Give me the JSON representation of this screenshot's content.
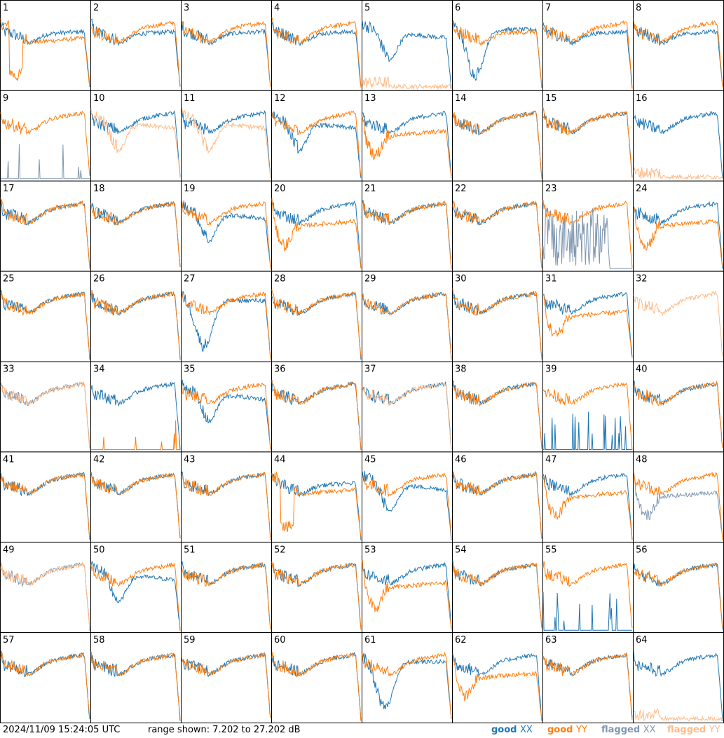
{
  "footer": {
    "timestamp": "2024/11/09 15:24:05 UTC",
    "range_text": "range shown: 7.202 to 27.202 dB"
  },
  "legend": {
    "good_xx": {
      "word": "good",
      "pol": "XX",
      "color": "#1f77b4"
    },
    "good_yy": {
      "word": "good",
      "pol": "YY",
      "color": "#ff7f0e"
    },
    "flagged_xx": {
      "word": "flagged",
      "pol": "XX",
      "color": "#7f97b0"
    },
    "flagged_yy": {
      "word": "flagged",
      "pol": "YY",
      "color": "#ffbb88"
    }
  },
  "chart_data": {
    "type": "line",
    "layout": "8x8 small multiples",
    "ylim": [
      7.202,
      27.202
    ],
    "yunit": "dB",
    "panels": [
      {
        "label": "1",
        "x": "good",
        "y": "good",
        "xs": "mid",
        "ys": "drop"
      },
      {
        "label": "2",
        "x": "good",
        "y": "good",
        "xs": "mid",
        "ys": "std"
      },
      {
        "label": "3",
        "x": "good",
        "y": "good",
        "xs": "mid",
        "ys": "std"
      },
      {
        "label": "4",
        "x": "good",
        "y": "good",
        "xs": "mid",
        "ys": "std"
      },
      {
        "label": "5",
        "x": "good",
        "y": "flagged",
        "xs": "dip",
        "ys": "flat"
      },
      {
        "label": "6",
        "x": "good",
        "y": "good",
        "xs": "deep",
        "ys": "mid"
      },
      {
        "label": "7",
        "x": "good",
        "y": "good",
        "xs": "mid",
        "ys": "std"
      },
      {
        "label": "8",
        "x": "good",
        "y": "good",
        "xs": "mid",
        "ys": "std"
      },
      {
        "label": "9",
        "x": "flagged",
        "y": "good",
        "xs": "spikes",
        "ys": "std"
      },
      {
        "label": "10",
        "x": "good",
        "y": "flagged",
        "xs": "std",
        "ys": "dip"
      },
      {
        "label": "11",
        "x": "good",
        "y": "flagged",
        "xs": "std",
        "ys": "dip"
      },
      {
        "label": "12",
        "x": "good",
        "y": "good",
        "xs": "dip",
        "ys": "std"
      },
      {
        "label": "13",
        "x": "good",
        "y": "good",
        "xs": "std",
        "ys": "low"
      },
      {
        "label": "14",
        "x": "good",
        "y": "good",
        "xs": "std",
        "ys": "std"
      },
      {
        "label": "15",
        "x": "good",
        "y": "good",
        "xs": "std",
        "ys": "std"
      },
      {
        "label": "16",
        "x": "good",
        "y": "flagged",
        "xs": "std",
        "ys": "flat"
      },
      {
        "label": "17",
        "x": "good",
        "y": "good",
        "xs": "std",
        "ys": "std"
      },
      {
        "label": "18",
        "x": "good",
        "y": "good",
        "xs": "std",
        "ys": "std"
      },
      {
        "label": "19",
        "x": "good",
        "y": "good",
        "xs": "dip",
        "ys": "std"
      },
      {
        "label": "20",
        "x": "good",
        "y": "good",
        "xs": "std",
        "ys": "low"
      },
      {
        "label": "21",
        "x": "good",
        "y": "good",
        "xs": "std",
        "ys": "std"
      },
      {
        "label": "22",
        "x": "good",
        "y": "good",
        "xs": "std",
        "ys": "std"
      },
      {
        "label": "23",
        "x": "flagged",
        "y": "good",
        "xs": "noise",
        "ys": "std"
      },
      {
        "label": "24",
        "x": "good",
        "y": "good",
        "xs": "std",
        "ys": "low"
      },
      {
        "label": "25",
        "x": "good",
        "y": "good",
        "xs": "std",
        "ys": "std"
      },
      {
        "label": "26",
        "x": "good",
        "y": "good",
        "xs": "std",
        "ys": "std"
      },
      {
        "label": "27",
        "x": "good",
        "y": "good",
        "xs": "deep",
        "ys": "std"
      },
      {
        "label": "28",
        "x": "good",
        "y": "good",
        "xs": "std",
        "ys": "std"
      },
      {
        "label": "29",
        "x": "good",
        "y": "good",
        "xs": "std",
        "ys": "std"
      },
      {
        "label": "30",
        "x": "good",
        "y": "good",
        "xs": "std",
        "ys": "std"
      },
      {
        "label": "31",
        "x": "good",
        "y": "good",
        "xs": "std",
        "ys": "low"
      },
      {
        "label": "32",
        "x": "none",
        "y": "flagged",
        "xs": "std",
        "ys": "std"
      },
      {
        "label": "33",
        "x": "flagged",
        "y": "flagged",
        "xs": "std",
        "ys": "std"
      },
      {
        "label": "34",
        "x": "good",
        "y": "good",
        "xs": "std",
        "ys": "spikes"
      },
      {
        "label": "35",
        "x": "good",
        "y": "good",
        "xs": "dip",
        "ys": "std"
      },
      {
        "label": "36",
        "x": "good",
        "y": "good",
        "xs": "std",
        "ys": "std"
      },
      {
        "label": "37",
        "x": "good",
        "y": "flagged",
        "xs": "std",
        "ys": "std"
      },
      {
        "label": "38",
        "x": "good",
        "y": "good",
        "xs": "std",
        "ys": "std"
      },
      {
        "label": "39",
        "x": "good",
        "y": "good",
        "xs": "spikes",
        "ys": "std"
      },
      {
        "label": "40",
        "x": "good",
        "y": "good",
        "xs": "std",
        "ys": "std"
      },
      {
        "label": "41",
        "x": "good",
        "y": "good",
        "xs": "std",
        "ys": "std"
      },
      {
        "label": "42",
        "x": "good",
        "y": "good",
        "xs": "std",
        "ys": "std"
      },
      {
        "label": "43",
        "x": "good",
        "y": "good",
        "xs": "std",
        "ys": "std"
      },
      {
        "label": "44",
        "x": "good",
        "y": "good",
        "xs": "mid",
        "ys": "drop"
      },
      {
        "label": "45",
        "x": "good",
        "y": "good",
        "xs": "dip",
        "ys": "std"
      },
      {
        "label": "46",
        "x": "good",
        "y": "good",
        "xs": "std",
        "ys": "std"
      },
      {
        "label": "47",
        "x": "good",
        "y": "good",
        "xs": "std",
        "ys": "low"
      },
      {
        "label": "48",
        "x": "flagged",
        "y": "good",
        "xs": "low",
        "ys": "std"
      },
      {
        "label": "49",
        "x": "flagged",
        "y": "flagged",
        "xs": "std",
        "ys": "std"
      },
      {
        "label": "50",
        "x": "good",
        "y": "good",
        "xs": "dip",
        "ys": "std"
      },
      {
        "label": "51",
        "x": "good",
        "y": "good",
        "xs": "std",
        "ys": "std"
      },
      {
        "label": "52",
        "x": "good",
        "y": "good",
        "xs": "std",
        "ys": "std"
      },
      {
        "label": "53",
        "x": "good",
        "y": "good",
        "xs": "std",
        "ys": "low"
      },
      {
        "label": "54",
        "x": "good",
        "y": "good",
        "xs": "std",
        "ys": "std"
      },
      {
        "label": "55",
        "x": "good",
        "y": "good",
        "xs": "spikes",
        "ys": "std"
      },
      {
        "label": "56",
        "x": "good",
        "y": "good",
        "xs": "std",
        "ys": "std"
      },
      {
        "label": "57",
        "x": "good",
        "y": "good",
        "xs": "std",
        "ys": "std"
      },
      {
        "label": "58",
        "x": "good",
        "y": "good",
        "xs": "std",
        "ys": "std"
      },
      {
        "label": "59",
        "x": "good",
        "y": "good",
        "xs": "std",
        "ys": "std"
      },
      {
        "label": "60",
        "x": "good",
        "y": "good",
        "xs": "std",
        "ys": "std"
      },
      {
        "label": "61",
        "x": "good",
        "y": "good",
        "xs": "deep",
        "ys": "std"
      },
      {
        "label": "62",
        "x": "good",
        "y": "good",
        "xs": "std",
        "ys": "low"
      },
      {
        "label": "63",
        "x": "good",
        "y": "good",
        "xs": "std",
        "ys": "std"
      },
      {
        "label": "64",
        "x": "good",
        "y": "flagged",
        "xs": "std",
        "ys": "flat"
      }
    ]
  }
}
